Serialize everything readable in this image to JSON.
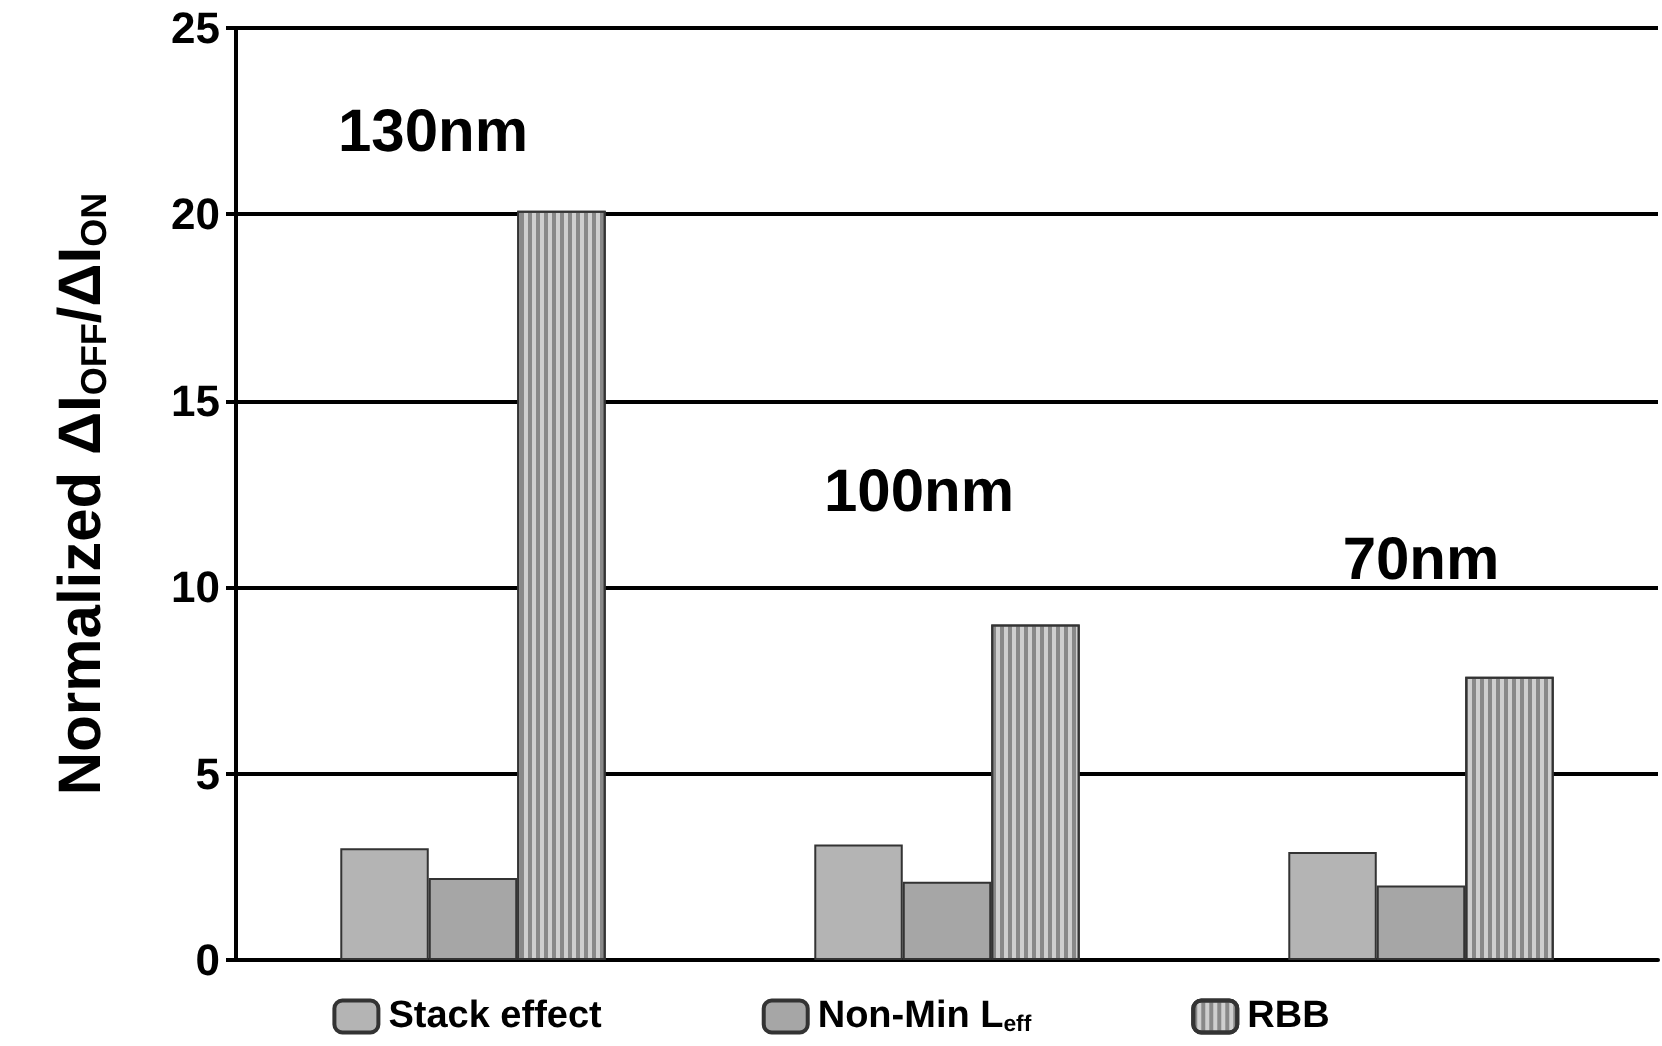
{
  "chart_data": {
    "type": "bar",
    "ylabel": "Normalized ΔI$_{OFF}$/ΔI$_{ON}$",
    "categories": [
      "130nm",
      "100nm",
      "70nm"
    ],
    "series": [
      {
        "name": "Stack effect",
        "color": "#b4b4b4",
        "values": [
          3.0,
          3.1,
          2.9
        ]
      },
      {
        "name": "Non-Min L$_{eff}$",
        "color": "#a6a6a6",
        "values": [
          2.2,
          2.1,
          2.0
        ]
      },
      {
        "name": "RBB",
        "color": "#cfcfcf",
        "values": [
          20.1,
          9.0,
          7.6
        ]
      }
    ],
    "ylim": [
      0,
      25
    ],
    "yticks": [
      0,
      5,
      10,
      15,
      20,
      25
    ],
    "grid": "y",
    "legend": "bottom"
  }
}
